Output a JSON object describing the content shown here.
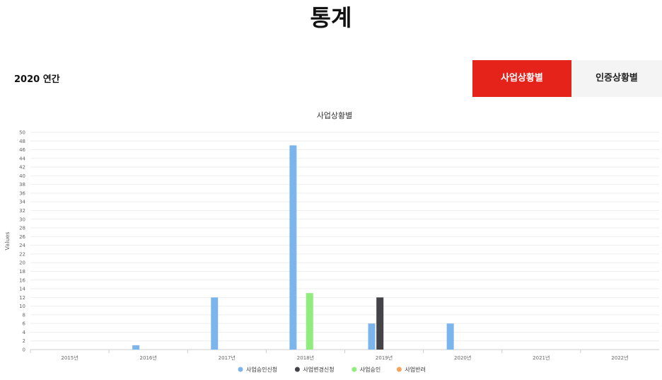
{
  "page": {
    "title": "통계"
  },
  "toolbar": {
    "period_label": "2020 연간"
  },
  "tabs": [
    {
      "label": "사업상황별",
      "active": true,
      "color": "#e5231b"
    },
    {
      "label": "인증상황별",
      "active": false
    }
  ],
  "chart_data": {
    "type": "bar",
    "title": "사업상황별",
    "xlabel": "",
    "ylabel": "Values",
    "ylim": [
      0,
      50
    ],
    "ytick_step": 2,
    "grid": true,
    "legend_position": "bottom",
    "categories": [
      "2015년",
      "2016년",
      "2017년",
      "2018년",
      "2019년",
      "2020년",
      "2021년",
      "2022년"
    ],
    "series": [
      {
        "name": "사업승인신청",
        "color": "#7cb5ec",
        "values": [
          0,
          1,
          12,
          47,
          6,
          6,
          0,
          0
        ]
      },
      {
        "name": "사업변경신청",
        "color": "#434348",
        "values": [
          0,
          0,
          0,
          0,
          12,
          0,
          0,
          0
        ]
      },
      {
        "name": "사업승인",
        "color": "#90ed7d",
        "values": [
          0,
          0,
          0,
          13,
          0,
          0,
          0,
          0
        ]
      },
      {
        "name": "사업반려",
        "color": "#f7a35c",
        "values": [
          0,
          0,
          0,
          0,
          0,
          0,
          0,
          0
        ]
      }
    ]
  }
}
